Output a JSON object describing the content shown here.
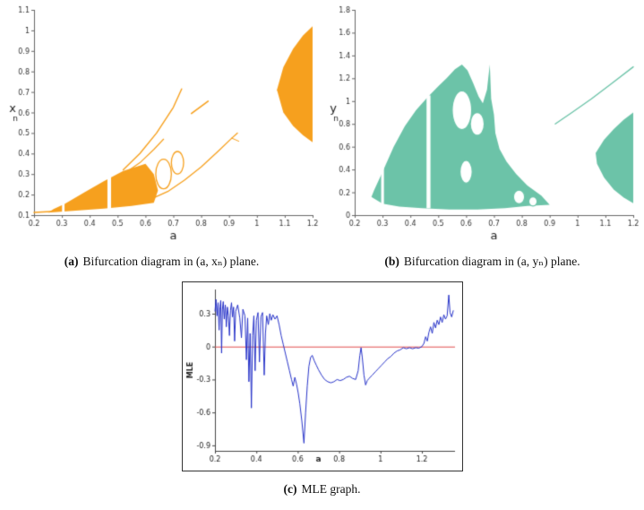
{
  "captions": {
    "a": {
      "label": "(a)",
      "text": "Bifurcation diagram in (a, xₙ) plane."
    },
    "b": {
      "label": "(b)",
      "text": "Bifurcation diagram in (a, yₙ) plane."
    },
    "c": {
      "label": "(c)",
      "text": "MLE graph."
    }
  },
  "chart_data": [
    {
      "id": "bif-a",
      "type": "scatter",
      "subtype": "bifurcation-diagram",
      "title": "Bifurcation diagram in (a, xₙ) plane",
      "xlabel": "a",
      "ylabel": "xₙ",
      "ylabel_main": "x",
      "ylabel_sub": "n",
      "xlim": [
        0.2,
        1.2
      ],
      "ylim": [
        0.1,
        1.1
      ],
      "xticks": [
        0.2,
        0.3,
        0.4,
        0.5,
        0.6,
        0.7,
        0.8,
        0.9,
        1,
        1.1,
        1.2
      ],
      "yticks": [
        0.1,
        0.2,
        0.3,
        0.4,
        0.5,
        0.6,
        0.7,
        0.8,
        0.9,
        1,
        1.1
      ],
      "color": "#F6A01E",
      "regions": [
        {
          "name": "chaotic-fan",
          "pts": [
            [
              0.25,
              0.112
            ],
            [
              0.35,
              0.122
            ],
            [
              0.45,
              0.132
            ],
            [
              0.55,
              0.145
            ],
            [
              0.63,
              0.16
            ],
            [
              0.645,
              0.22
            ],
            [
              0.63,
              0.3
            ],
            [
              0.6,
              0.35
            ],
            [
              0.52,
              0.315
            ],
            [
              0.45,
              0.265
            ],
            [
              0.38,
              0.21
            ],
            [
              0.31,
              0.155
            ],
            [
              0.27,
              0.13
            ]
          ]
        },
        {
          "name": "right-chaotic-blob",
          "pts": [
            [
              1.072,
              0.71
            ],
            [
              1.095,
              0.82
            ],
            [
              1.13,
              0.91
            ],
            [
              1.165,
              0.975
            ],
            [
              1.2,
              1.02
            ],
            [
              1.2,
              0.455
            ],
            [
              1.165,
              0.49
            ],
            [
              1.13,
              0.535
            ],
            [
              1.095,
              0.6
            ]
          ]
        }
      ],
      "curves": [
        {
          "name": "fixed-point-branch",
          "w": 1.5,
          "pts": [
            [
              0.2,
              0.113
            ],
            [
              0.26,
              0.118
            ]
          ]
        },
        {
          "name": "upper-branch",
          "w": 1.4,
          "pts": [
            [
              0.52,
              0.32
            ],
            [
              0.58,
              0.4
            ],
            [
              0.64,
              0.5
            ],
            [
              0.7,
              0.625
            ],
            [
              0.73,
              0.715
            ]
          ]
        },
        {
          "name": "upper-branch-2",
          "w": 1.2,
          "pts": [
            [
              0.52,
              0.3
            ],
            [
              0.58,
              0.355
            ],
            [
              0.63,
              0.42
            ],
            [
              0.665,
              0.47
            ]
          ]
        },
        {
          "name": "lower-branch",
          "w": 1.3,
          "pts": [
            [
              0.63,
              0.185
            ],
            [
              0.68,
              0.215
            ],
            [
              0.74,
              0.27
            ],
            [
              0.8,
              0.335
            ],
            [
              0.86,
              0.41
            ],
            [
              0.91,
              0.475
            ],
            [
              0.93,
              0.5
            ]
          ]
        },
        {
          "name": "lower-branch-fork",
          "w": 1.0,
          "pts": [
            [
              0.91,
              0.475
            ],
            [
              0.935,
              0.46
            ]
          ]
        },
        {
          "name": "isolated-segment",
          "w": 1.6,
          "pts": [
            [
              0.765,
              0.595
            ],
            [
              0.825,
              0.655
            ]
          ]
        }
      ],
      "rings": [
        {
          "cx": 0.665,
          "cy": 0.3,
          "rx": 0.028,
          "ry": 0.072
        },
        {
          "cx": 0.715,
          "cy": 0.355,
          "rx": 0.022,
          "ry": 0.055
        }
      ],
      "gaps": [
        {
          "x": 0.305,
          "w": 0.009,
          "y0": 0.112,
          "y1": 0.195
        },
        {
          "x": 0.47,
          "w": 0.013,
          "y0": 0.128,
          "y1": 0.3
        }
      ]
    },
    {
      "id": "bif-b",
      "type": "scatter",
      "subtype": "bifurcation-diagram",
      "title": "Bifurcation diagram in (a, yₙ) plane",
      "xlabel": "a",
      "ylabel": "yₙ",
      "ylabel_main": "y",
      "ylabel_sub": "n",
      "xlim": [
        0.2,
        1.2
      ],
      "ylim": [
        0,
        1.8
      ],
      "xticks": [
        0.2,
        0.3,
        0.4,
        0.5,
        0.6,
        0.7,
        0.8,
        0.9,
        1,
        1.1,
        1.2
      ],
      "yticks": [
        0,
        0.2,
        0.4,
        0.6,
        0.8,
        1,
        1.2,
        1.4,
        1.6,
        1.8
      ],
      "color": "#6CC3A8",
      "regions": [
        {
          "name": "main-chaotic-region",
          "pts": [
            [
              0.26,
              0.16
            ],
            [
              0.3,
              0.1
            ],
            [
              0.36,
              0.075
            ],
            [
              0.44,
              0.06
            ],
            [
              0.54,
              0.05
            ],
            [
              0.64,
              0.05
            ],
            [
              0.74,
              0.06
            ],
            [
              0.82,
              0.08
            ],
            [
              0.9,
              0.09
            ],
            [
              0.87,
              0.17
            ],
            [
              0.82,
              0.26
            ],
            [
              0.78,
              0.36
            ],
            [
              0.745,
              0.47
            ],
            [
              0.72,
              0.58
            ],
            [
              0.705,
              0.72
            ],
            [
              0.7,
              0.88
            ],
            [
              0.69,
              1.02
            ],
            [
              0.685,
              1.32
            ],
            [
              0.675,
              1.1
            ],
            [
              0.66,
              0.98
            ],
            [
              0.645,
              1.04
            ],
            [
              0.625,
              1.16
            ],
            [
              0.605,
              1.27
            ],
            [
              0.585,
              1.32
            ],
            [
              0.56,
              1.28
            ],
            [
              0.53,
              1.2
            ],
            [
              0.5,
              1.13
            ],
            [
              0.46,
              1.03
            ],
            [
              0.42,
              0.92
            ],
            [
              0.38,
              0.78
            ],
            [
              0.34,
              0.6
            ],
            [
              0.3,
              0.38
            ],
            [
              0.27,
              0.22
            ]
          ]
        },
        {
          "name": "right-chaotic-blob",
          "pts": [
            [
              1.065,
              0.545
            ],
            [
              1.095,
              0.66
            ],
            [
              1.13,
              0.755
            ],
            [
              1.165,
              0.835
            ],
            [
              1.2,
              0.9
            ],
            [
              1.2,
              0.105
            ],
            [
              1.165,
              0.155
            ],
            [
              1.13,
              0.225
            ],
            [
              1.095,
              0.33
            ],
            [
              1.07,
              0.45
            ]
          ]
        }
      ],
      "curves": [
        {
          "name": "periodic-branch-right",
          "w": 1.4,
          "pts": [
            [
              0.92,
              0.8
            ],
            [
              0.98,
              0.9
            ],
            [
              1.05,
              1.02
            ],
            [
              1.12,
              1.15
            ],
            [
              1.2,
              1.3
            ]
          ]
        }
      ],
      "rings": [
        {
          "cx": 0.585,
          "cy": 0.92,
          "rx": 0.035,
          "ry": 0.17
        },
        {
          "cx": 0.64,
          "cy": 0.8,
          "rx": 0.025,
          "ry": 0.1
        },
        {
          "cx": 0.6,
          "cy": 0.38,
          "rx": 0.022,
          "ry": 0.1
        },
        {
          "cx": 0.79,
          "cy": 0.16,
          "rx": 0.02,
          "ry": 0.06
        },
        {
          "cx": 0.84,
          "cy": 0.12,
          "rx": 0.015,
          "ry": 0.04
        }
      ],
      "gaps": [
        {
          "x": 0.3,
          "w": 0.01,
          "y0": 0.08,
          "y1": 0.42
        },
        {
          "x": 0.465,
          "w": 0.014,
          "y0": 0.06,
          "y1": 1.05
        }
      ]
    },
    {
      "id": "mle",
      "type": "line",
      "title": "MLE graph",
      "xlabel": "a",
      "ylabel": "MLE",
      "xlim": [
        0.2,
        1.36
      ],
      "ylim": [
        -0.95,
        0.52
      ],
      "xticks": [
        0.2,
        0.4,
        0.6,
        0.8,
        1,
        1.2
      ],
      "yticks": [
        0.3,
        0,
        -0.3,
        -0.6,
        -0.9
      ],
      "line_color": "#2733C8",
      "zero_line": {
        "y": 0,
        "color": "#E14B4B"
      },
      "series": [
        {
          "name": "MLE",
          "points": [
            [
              0.2,
              0.32
            ],
            [
              0.205,
              0.43
            ],
            [
              0.21,
              0.28
            ],
            [
              0.215,
              0.4
            ],
            [
              0.22,
              0.15
            ],
            [
              0.224,
              0.36
            ],
            [
              0.228,
              0.42
            ],
            [
              0.232,
              -0.06
            ],
            [
              0.236,
              0.34
            ],
            [
              0.24,
              0.41
            ],
            [
              0.245,
              0.25
            ],
            [
              0.25,
              0.38
            ],
            [
              0.255,
              0.18
            ],
            [
              0.26,
              0.36
            ],
            [
              0.265,
              0.28
            ],
            [
              0.27,
              0.1
            ],
            [
              0.275,
              0.33
            ],
            [
              0.28,
              0.4
            ],
            [
              0.285,
              0.27
            ],
            [
              0.29,
              0.36
            ],
            [
              0.295,
              0.05
            ],
            [
              0.3,
              0.32
            ],
            [
              0.31,
              0.38
            ],
            [
              0.32,
              0.26
            ],
            [
              0.328,
              0.08
            ],
            [
              0.335,
              0.34
            ],
            [
              0.345,
              0.28
            ],
            [
              0.352,
              -0.12
            ],
            [
              0.358,
              0.26
            ],
            [
              0.364,
              -0.32
            ],
            [
              0.37,
              0.12
            ],
            [
              0.376,
              -0.56
            ],
            [
              0.382,
              0.1
            ],
            [
              0.388,
              0.28
            ],
            [
              0.394,
              -0.22
            ],
            [
              0.4,
              0.24
            ],
            [
              0.408,
              0.31
            ],
            [
              0.415,
              -0.14
            ],
            [
              0.422,
              0.27
            ],
            [
              0.43,
              0.31
            ],
            [
              0.438,
              -0.26
            ],
            [
              0.444,
              0.12
            ],
            [
              0.45,
              0.28
            ],
            [
              0.458,
              0.2
            ],
            [
              0.465,
              0.3
            ],
            [
              0.472,
              0.24
            ],
            [
              0.48,
              0.29
            ],
            [
              0.49,
              0.25
            ],
            [
              0.5,
              0.28
            ],
            [
              0.51,
              0.2
            ],
            [
              0.52,
              0.1
            ],
            [
              0.53,
              0.02
            ],
            [
              0.54,
              -0.06
            ],
            [
              0.55,
              -0.14
            ],
            [
              0.56,
              -0.22
            ],
            [
              0.57,
              -0.3
            ],
            [
              0.578,
              -0.36
            ],
            [
              0.586,
              -0.28
            ],
            [
              0.594,
              -0.34
            ],
            [
              0.602,
              -0.42
            ],
            [
              0.61,
              -0.52
            ],
            [
              0.62,
              -0.68
            ],
            [
              0.63,
              -0.88
            ],
            [
              0.638,
              -0.6
            ],
            [
              0.646,
              -0.36
            ],
            [
              0.654,
              -0.18
            ],
            [
              0.662,
              -0.1
            ],
            [
              0.67,
              -0.08
            ],
            [
              0.68,
              -0.13
            ],
            [
              0.69,
              -0.17
            ],
            [
              0.7,
              -0.21
            ],
            [
              0.715,
              -0.26
            ],
            [
              0.73,
              -0.3
            ],
            [
              0.745,
              -0.32
            ],
            [
              0.76,
              -0.33
            ],
            [
              0.775,
              -0.32
            ],
            [
              0.79,
              -0.3
            ],
            [
              0.805,
              -0.31
            ],
            [
              0.82,
              -0.3
            ],
            [
              0.835,
              -0.28
            ],
            [
              0.85,
              -0.27
            ],
            [
              0.865,
              -0.29
            ],
            [
              0.88,
              -0.3
            ],
            [
              0.892,
              -0.22
            ],
            [
              0.9,
              -0.08
            ],
            [
              0.906,
              -0.01
            ],
            [
              0.912,
              -0.1
            ],
            [
              0.92,
              -0.26
            ],
            [
              0.928,
              -0.35
            ],
            [
              0.936,
              -0.31
            ],
            [
              0.945,
              -0.29
            ],
            [
              0.96,
              -0.26
            ],
            [
              0.975,
              -0.23
            ],
            [
              0.99,
              -0.2
            ],
            [
              1.005,
              -0.17
            ],
            [
              1.02,
              -0.14
            ],
            [
              1.035,
              -0.11
            ],
            [
              1.05,
              -0.09
            ],
            [
              1.065,
              -0.06
            ],
            [
              1.08,
              -0.04
            ],
            [
              1.095,
              -0.03
            ],
            [
              1.11,
              -0.01
            ],
            [
              1.125,
              -0.02
            ],
            [
              1.14,
              -0.01
            ],
            [
              1.155,
              -0.02
            ],
            [
              1.17,
              -0.01
            ],
            [
              1.185,
              -0.015
            ],
            [
              1.2,
              0.0
            ],
            [
              1.21,
              0.03
            ],
            [
              1.218,
              0.09
            ],
            [
              1.226,
              0.05
            ],
            [
              1.234,
              0.13
            ],
            [
              1.242,
              0.18
            ],
            [
              1.25,
              0.12
            ],
            [
              1.258,
              0.22
            ],
            [
              1.266,
              0.17
            ],
            [
              1.274,
              0.24
            ],
            [
              1.282,
              0.2
            ],
            [
              1.29,
              0.27
            ],
            [
              1.298,
              0.22
            ],
            [
              1.306,
              0.29
            ],
            [
              1.314,
              0.25
            ],
            [
              1.322,
              0.28
            ],
            [
              1.33,
              0.47
            ],
            [
              1.336,
              0.31
            ],
            [
              1.344,
              0.27
            ],
            [
              1.352,
              0.33
            ]
          ]
        }
      ]
    }
  ]
}
